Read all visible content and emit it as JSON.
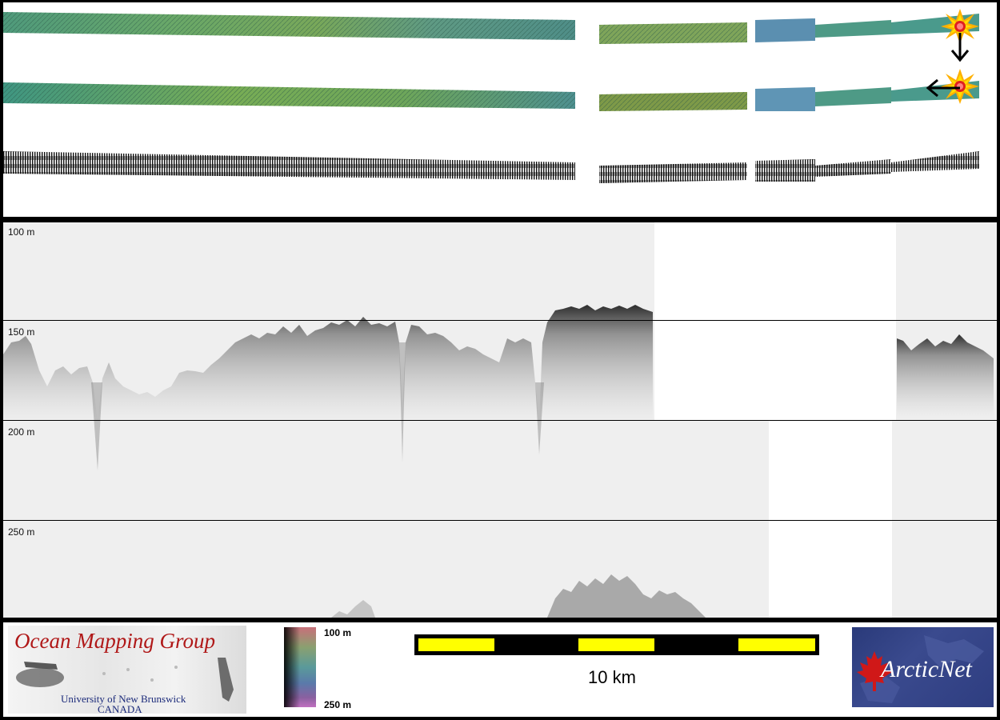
{
  "profile": {
    "depth_labels": [
      "100 m",
      "150 m",
      "200 m",
      "250 m"
    ]
  },
  "footer": {
    "logo_omg": {
      "title": "Ocean Mapping Group",
      "line1": "University of New Brunswick",
      "line2": "CANADA"
    },
    "colorbar": {
      "top_label": "100 m",
      "bottom_label": "250 m"
    },
    "scalebar": {
      "label": "10 km",
      "colors": {
        "fill": "#ffff00",
        "track": "#000000"
      }
    },
    "logo_arctic": {
      "text": "ArcticNet"
    }
  },
  "colors": {
    "strip_green": "#5fa07a",
    "strip_blue": "#5c8fb5",
    "echo_background": "#efefef",
    "title_red": "#b01818",
    "subtitle_navy": "#1b2a7a"
  },
  "icons": [
    "sun-marker-icon",
    "arrow-down-icon",
    "arrow-left-icon",
    "maple-leaf-icon"
  ]
}
